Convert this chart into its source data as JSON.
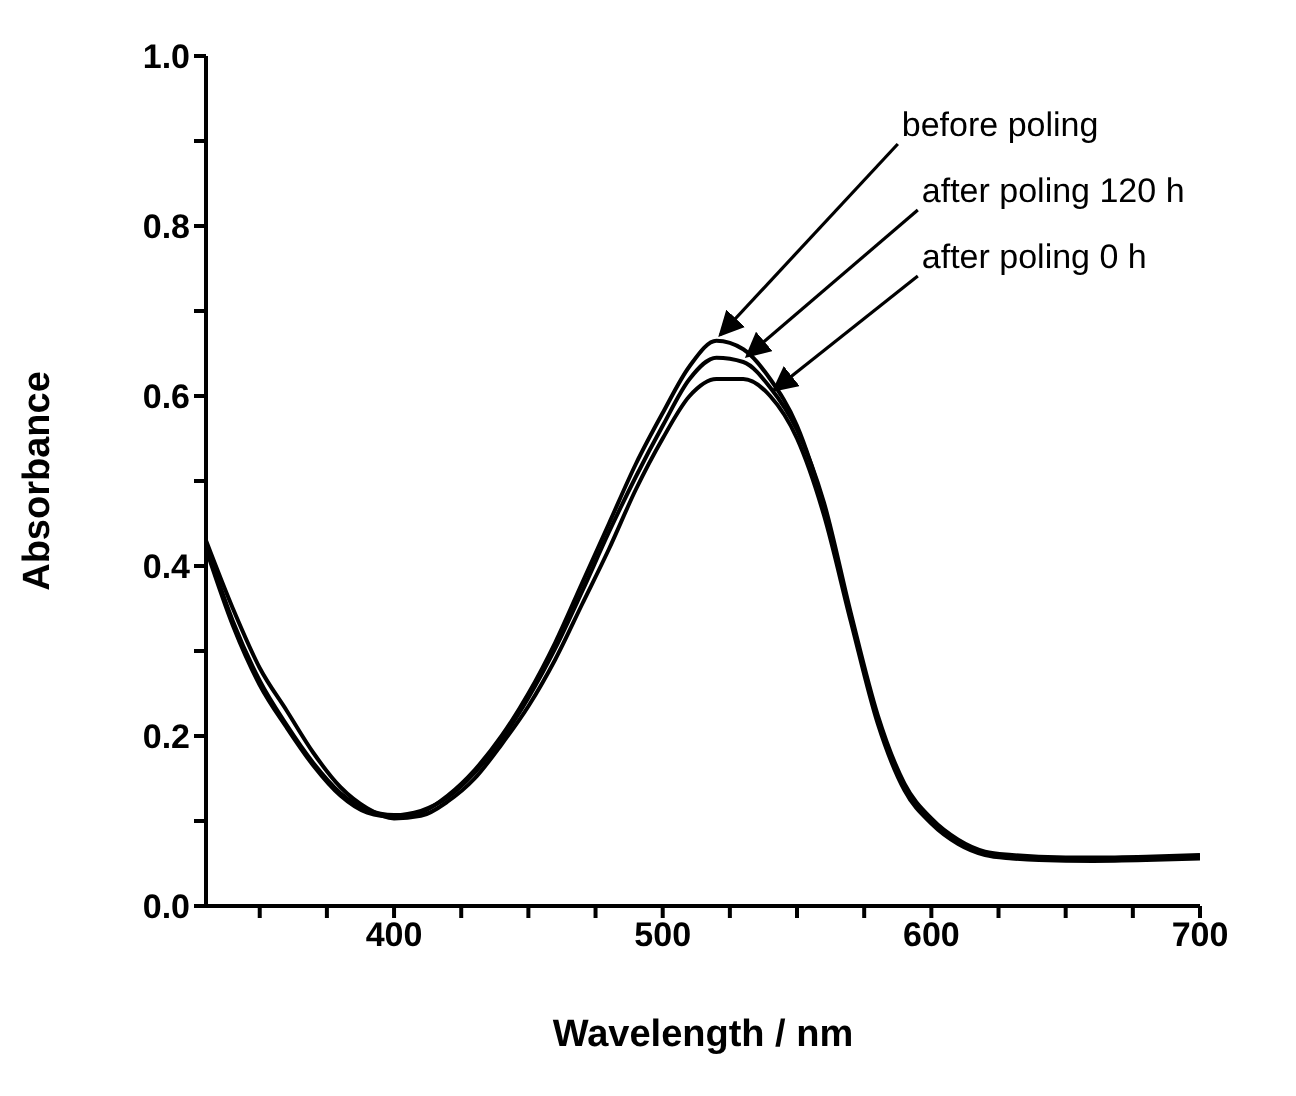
{
  "chart_data": {
    "type": "line",
    "xlabel": "Wavelength / nm",
    "ylabel": "Absorbance",
    "x": [
      330,
      340,
      350,
      360,
      370,
      380,
      390,
      400,
      410,
      420,
      430,
      440,
      450,
      460,
      470,
      480,
      490,
      500,
      510,
      520,
      530,
      540,
      550,
      560,
      570,
      580,
      590,
      600,
      610,
      620,
      630,
      640,
      660,
      680,
      700
    ],
    "series": [
      {
        "color": "#000000",
        "values": [
          0.42,
          0.33,
          0.26,
          0.21,
          0.165,
          0.13,
          0.11,
          0.105,
          0.11,
          0.13,
          0.16,
          0.2,
          0.25,
          0.31,
          0.38,
          0.45,
          0.52,
          0.58,
          0.635,
          0.665,
          0.655,
          0.62,
          0.565,
          0.47,
          0.34,
          0.22,
          0.14,
          0.1,
          0.075,
          0.062,
          0.058,
          0.056,
          0.055,
          0.056,
          0.058
        ]
      },
      {
        "color": "#000000",
        "values": [
          0.425,
          0.335,
          0.265,
          0.213,
          0.168,
          0.133,
          0.113,
          0.107,
          0.112,
          0.128,
          0.157,
          0.196,
          0.245,
          0.303,
          0.37,
          0.44,
          0.505,
          0.565,
          0.62,
          0.645,
          0.64,
          0.61,
          0.56,
          0.475,
          0.345,
          0.225,
          0.144,
          0.103,
          0.078,
          0.064,
          0.06,
          0.058,
          0.057,
          0.058,
          0.06
        ]
      },
      {
        "color": "#000000",
        "values": [
          0.43,
          0.35,
          0.28,
          0.23,
          0.18,
          0.14,
          0.115,
          0.103,
          0.106,
          0.123,
          0.15,
          0.19,
          0.235,
          0.29,
          0.355,
          0.42,
          0.49,
          0.55,
          0.6,
          0.62,
          0.62,
          0.6,
          0.55,
          0.46,
          0.335,
          0.215,
          0.136,
          0.097,
          0.073,
          0.06,
          0.056,
          0.054,
          0.053,
          0.054,
          0.056
        ]
      }
    ],
    "annotations": [
      {
        "text": "before poling",
        "x": 520,
        "y": 0.665
      },
      {
        "text": "after poling 120 h",
        "x": 530,
        "y": 0.64
      },
      {
        "text": "after poling 0 h",
        "x": 540,
        "y": 0.6
      }
    ],
    "xlim": [
      330,
      700
    ],
    "xticks": [
      {
        "value": 350,
        "label": null
      },
      {
        "value": 375,
        "label": null
      },
      400,
      {
        "value": 425,
        "label": null
      },
      {
        "value": 450,
        "label": null
      },
      {
        "value": 475,
        "label": null
      },
      500,
      {
        "value": 525,
        "label": null
      },
      {
        "value": 550,
        "label": null
      },
      {
        "value": 575,
        "label": null
      },
      600,
      {
        "value": 625,
        "label": null
      },
      {
        "value": 650,
        "label": null
      },
      {
        "value": 675,
        "label": null
      },
      700
    ],
    "ylim": [
      0,
      1
    ],
    "yticks": [
      {
        "value": 0,
        "label": "0.0"
      },
      {
        "value": 0.1,
        "label": null
      },
      0.2,
      {
        "value": 0.3,
        "label": null
      },
      0.4,
      {
        "value": 0.5,
        "label": null
      },
      0.6,
      {
        "value": 0.7,
        "label": null
      },
      0.8,
      {
        "value": 0.9,
        "label": null
      },
      {
        "value": 1,
        "label": "1.0"
      }
    ],
    "grid": false,
    "legend": false,
    "marker": "none",
    "line_style": "solid"
  }
}
